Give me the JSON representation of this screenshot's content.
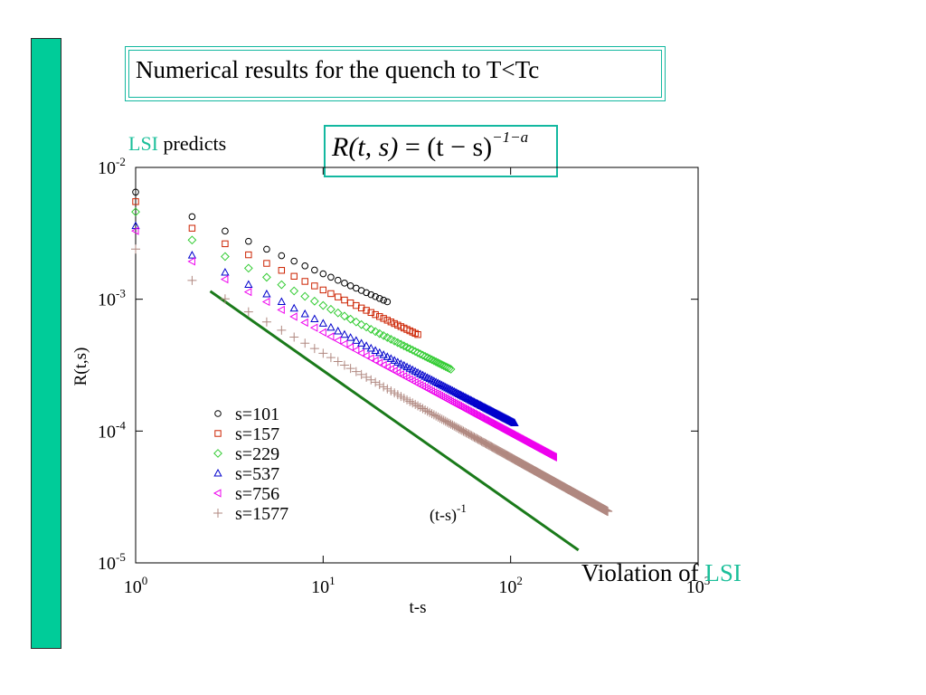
{
  "title": "Numerical results for the quench to T<Tc",
  "lsi_note": {
    "accent": "LSI",
    "rest": " predicts"
  },
  "formula": {
    "lhs": "R(t, s)",
    "eq": " = (t − s)",
    "exponent": "−1−a"
  },
  "conclusion": {
    "prefix": "Violation of ",
    "accent": "LSI"
  },
  "colors": {
    "sidebar": "#00cc99",
    "accent": "#1bbf9a",
    "frame": "#13b8a0"
  },
  "chart_data": {
    "type": "scatter",
    "xscale": "log",
    "yscale": "log",
    "xlabel": "t-s",
    "ylabel": "R(t,s)",
    "xlim": [
      1,
      1000
    ],
    "ylim": [
      1e-05,
      0.01
    ],
    "x_ticks": [
      {
        "value": 1,
        "base": "10",
        "exp": "0"
      },
      {
        "value": 10,
        "base": "10",
        "exp": "1"
      },
      {
        "value": 100,
        "base": "10",
        "exp": "2"
      },
      {
        "value": 1000,
        "base": "10",
        "exp": "3"
      }
    ],
    "y_ticks": [
      {
        "value": 1e-05,
        "base": "10",
        "exp": "-5"
      },
      {
        "value": 0.0001,
        "base": "10",
        "exp": "-4"
      },
      {
        "value": 0.001,
        "base": "10",
        "exp": "-3"
      },
      {
        "value": 0.01,
        "base": "10",
        "exp": "-2"
      }
    ],
    "legend_position": "lower-left",
    "series": [
      {
        "name": "s=101",
        "marker": "circle",
        "color": "#000000",
        "x_range": [
          1,
          22
        ],
        "y_start": 0.0065,
        "exponent": -0.62
      },
      {
        "name": "s=157",
        "marker": "square",
        "color": "#cc2200",
        "x_range": [
          1,
          32
        ],
        "y_start": 0.0055,
        "exponent": -0.67
      },
      {
        "name": "s=229",
        "marker": "diamond",
        "color": "#33cc33",
        "x_range": [
          1,
          48
        ],
        "y_start": 0.0046,
        "exponent": -0.71
      },
      {
        "name": "s=537",
        "marker": "triangle-up",
        "color": "#0000cc",
        "x_range": [
          1,
          105
        ],
        "y_start": 0.0036,
        "exponent": -0.74
      },
      {
        "name": "s=756",
        "marker": "triangle-left",
        "color": "#ee00ee",
        "x_range": [
          1,
          170
        ],
        "y_start": 0.0033,
        "exponent": -0.77
      },
      {
        "name": "s=1577",
        "marker": "plus",
        "color": "#b08880",
        "x_range": [
          1,
          330
        ],
        "y_start": 0.0024,
        "exponent": -0.79
      }
    ],
    "reference_line": {
      "label_base": "(t-s)",
      "label_exp": "-1",
      "color": "#1a7a1a",
      "x_range": [
        2.5,
        230
      ],
      "y_start": 0.00115,
      "slope": -1
    }
  }
}
